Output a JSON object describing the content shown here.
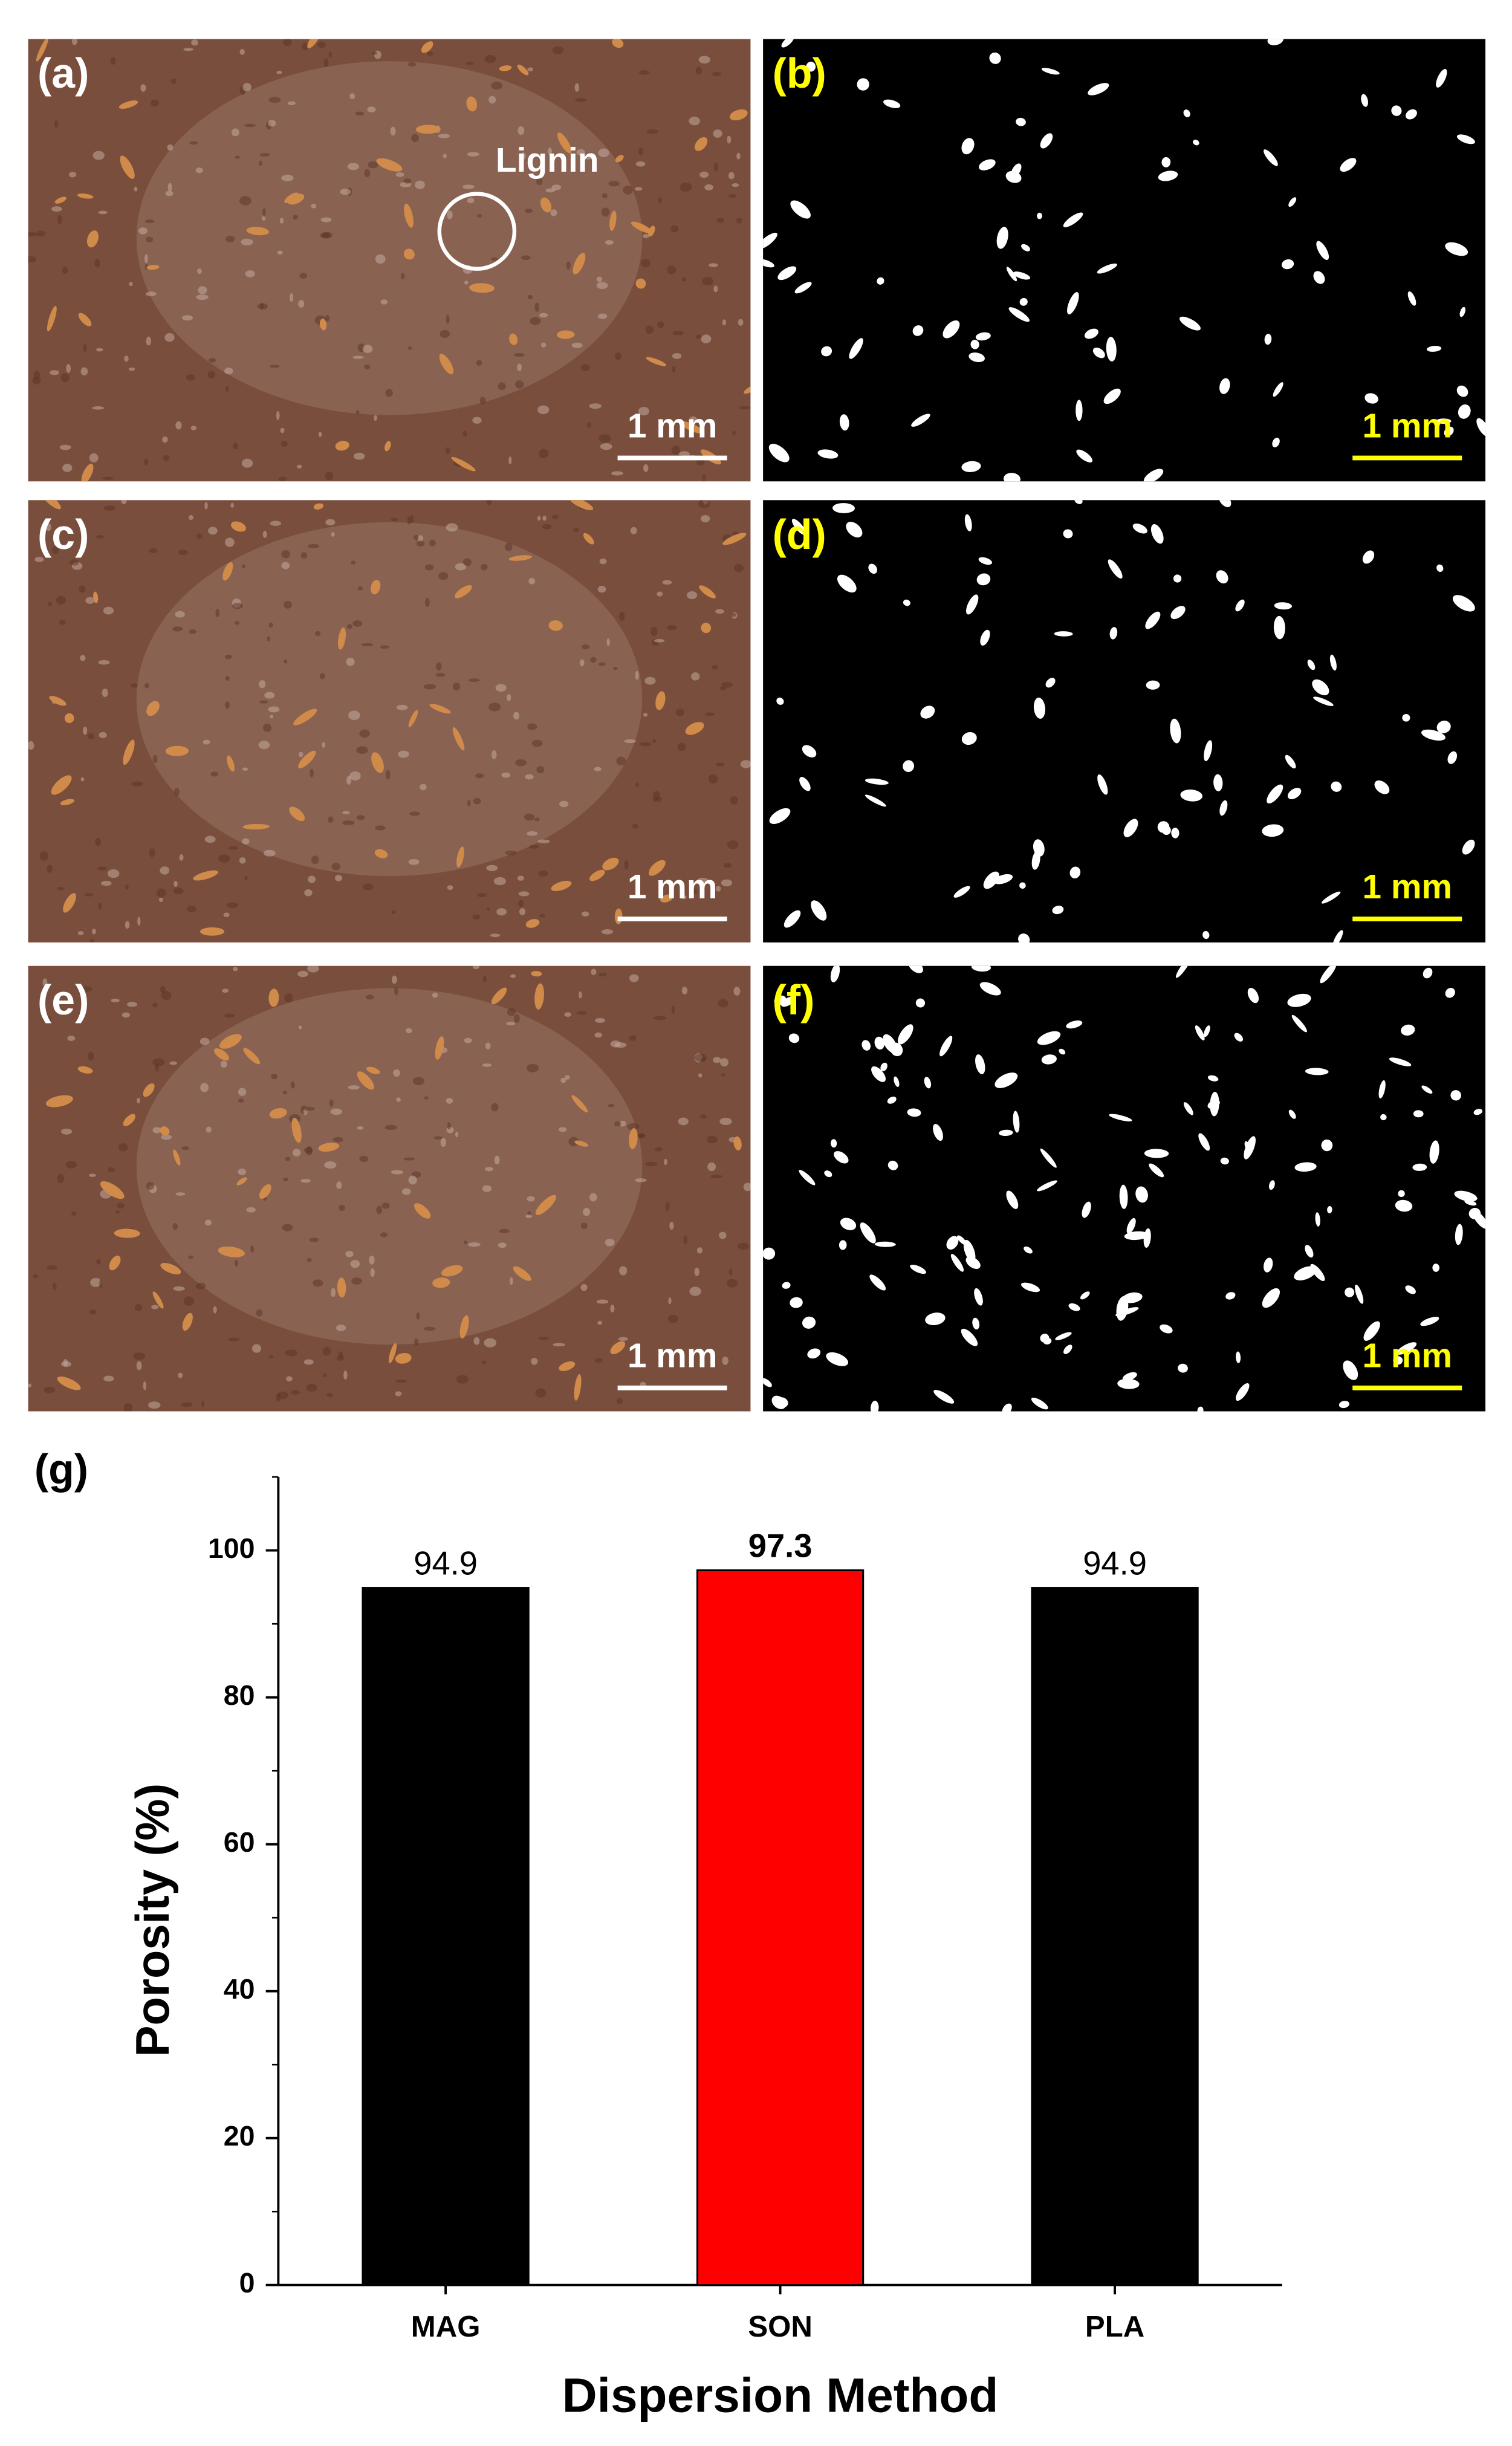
{
  "panels": [
    {
      "label": "(a)",
      "scale_bar": "1 mm"
    },
    {
      "label": "(b)",
      "scale_bar": "1 mm"
    },
    {
      "label": "(c)",
      "scale_bar": "1 mm"
    },
    {
      "label": "(d)",
      "scale_bar": "1 mm"
    },
    {
      "label": "(e)",
      "scale_bar": "1 mm"
    },
    {
      "label": "(f)",
      "scale_bar": "1 mm"
    }
  ],
  "annotation": "Lignin",
  "chart_data": {
    "type": "bar",
    "label": "(g)",
    "x_label": "Dispersion Method",
    "y_label": "Porosity (%)",
    "categories": [
      "MAG",
      "SON",
      "PLA"
    ],
    "values": [
      94.9,
      97.3,
      94.9
    ],
    "colors": [
      "#000000",
      "#ff0000",
      "#000000"
    ],
    "ylim": [
      0,
      110
    ],
    "yticks": [
      0,
      20,
      40,
      60,
      80,
      100
    ]
  }
}
